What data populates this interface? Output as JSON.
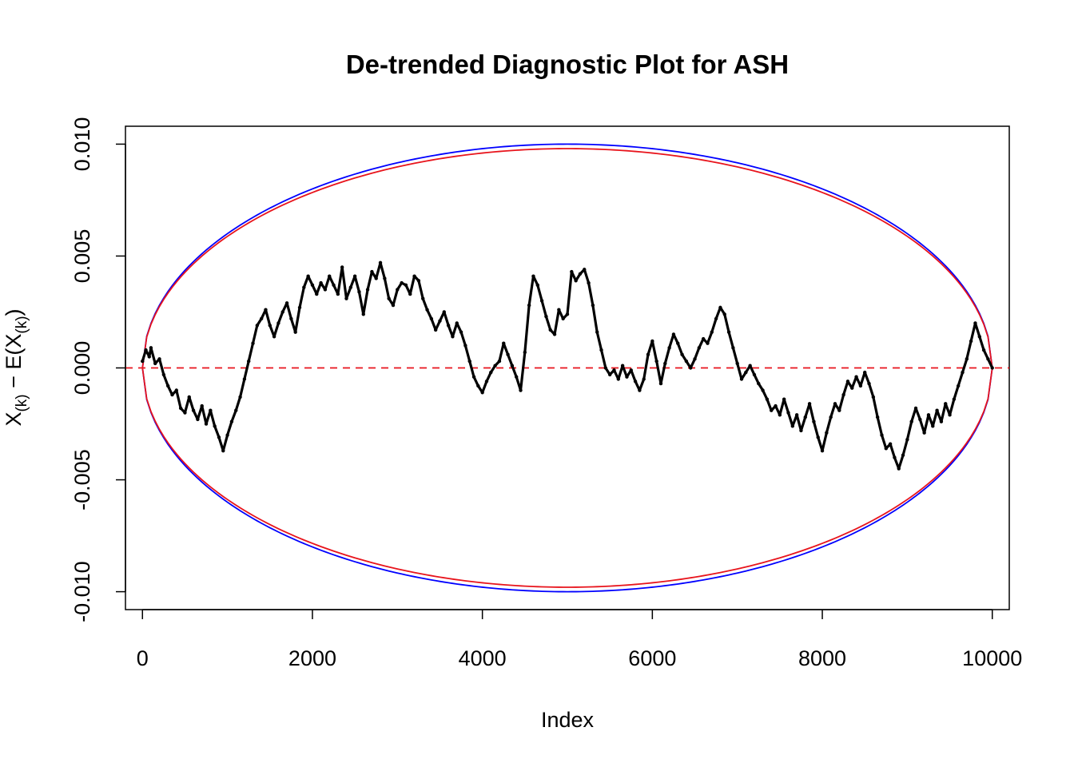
{
  "chart_data": {
    "type": "scatter",
    "title": "De-trended Diagnostic Plot for ASH",
    "xlabel": "Index",
    "ylabel": {
      "main": "X",
      "sub1": "(k)",
      "minus": " − E(X",
      "sub2": "(k)",
      "close": ")"
    },
    "xlim": [
      -200,
      10200
    ],
    "ylim": [
      -0.0108,
      0.0108
    ],
    "x_ticks": [
      {
        "value": 0,
        "label": "0"
      },
      {
        "value": 2000,
        "label": "2000"
      },
      {
        "value": 4000,
        "label": "4000"
      },
      {
        "value": 6000,
        "label": "6000"
      },
      {
        "value": 8000,
        "label": "8000"
      },
      {
        "value": 10000,
        "label": "10000"
      }
    ],
    "y_ticks": [
      {
        "value": -0.01,
        "label": "-0.010"
      },
      {
        "value": -0.005,
        "label": "-0.005"
      },
      {
        "value": 0,
        "label": "0.000"
      },
      {
        "value": 0.005,
        "label": "0.005"
      },
      {
        "value": 0.01,
        "label": "0.010"
      }
    ],
    "reference_line": {
      "y": 0,
      "style": "dashed",
      "color": "#e8141c"
    },
    "bands": [
      {
        "color": "#0000ff",
        "half_width_at_center": 0.01,
        "n": 10000
      },
      {
        "color": "#e8141c",
        "half_width_at_center": 0.0098,
        "n": 10000
      }
    ],
    "series_color": "#000000",
    "points": [
      [
        0,
        0.0003
      ],
      [
        40,
        0.0008
      ],
      [
        80,
        0.0005
      ],
      [
        100,
        0.0009
      ],
      [
        150,
        0.0002
      ],
      [
        200,
        0.0004
      ],
      [
        250,
        -0.0003
      ],
      [
        300,
        -0.0008
      ],
      [
        350,
        -0.0012
      ],
      [
        400,
        -0.001
      ],
      [
        450,
        -0.0018
      ],
      [
        500,
        -0.002
      ],
      [
        550,
        -0.0013
      ],
      [
        600,
        -0.0019
      ],
      [
        650,
        -0.0023
      ],
      [
        700,
        -0.0017
      ],
      [
        750,
        -0.0025
      ],
      [
        800,
        -0.0019
      ],
      [
        850,
        -0.0026
      ],
      [
        900,
        -0.0031
      ],
      [
        950,
        -0.0037
      ],
      [
        1000,
        -0.003
      ],
      [
        1050,
        -0.0024
      ],
      [
        1100,
        -0.0019
      ],
      [
        1150,
        -0.0013
      ],
      [
        1200,
        -0.0005
      ],
      [
        1250,
        0.0003
      ],
      [
        1300,
        0.0011
      ],
      [
        1350,
        0.0019
      ],
      [
        1400,
        0.0022
      ],
      [
        1450,
        0.0026
      ],
      [
        1500,
        0.0019
      ],
      [
        1550,
        0.0014
      ],
      [
        1600,
        0.002
      ],
      [
        1650,
        0.0025
      ],
      [
        1700,
        0.0029
      ],
      [
        1750,
        0.0022
      ],
      [
        1800,
        0.0016
      ],
      [
        1850,
        0.0027
      ],
      [
        1900,
        0.0036
      ],
      [
        1950,
        0.0041
      ],
      [
        2000,
        0.0037
      ],
      [
        2050,
        0.0033
      ],
      [
        2100,
        0.0038
      ],
      [
        2150,
        0.0035
      ],
      [
        2200,
        0.0041
      ],
      [
        2250,
        0.0037
      ],
      [
        2300,
        0.0033
      ],
      [
        2350,
        0.0045
      ],
      [
        2400,
        0.0031
      ],
      [
        2450,
        0.0036
      ],
      [
        2500,
        0.0041
      ],
      [
        2550,
        0.0034
      ],
      [
        2600,
        0.0024
      ],
      [
        2650,
        0.0035
      ],
      [
        2700,
        0.0043
      ],
      [
        2750,
        0.004
      ],
      [
        2800,
        0.0047
      ],
      [
        2850,
        0.004
      ],
      [
        2900,
        0.0031
      ],
      [
        2950,
        0.0028
      ],
      [
        3000,
        0.0035
      ],
      [
        3050,
        0.0038
      ],
      [
        3100,
        0.0037
      ],
      [
        3150,
        0.0033
      ],
      [
        3200,
        0.0041
      ],
      [
        3250,
        0.0039
      ],
      [
        3300,
        0.0031
      ],
      [
        3350,
        0.0026
      ],
      [
        3400,
        0.0022
      ],
      [
        3450,
        0.0017
      ],
      [
        3500,
        0.0021
      ],
      [
        3550,
        0.0025
      ],
      [
        3600,
        0.0019
      ],
      [
        3650,
        0.0014
      ],
      [
        3700,
        0.002
      ],
      [
        3750,
        0.0016
      ],
      [
        3800,
        0.001
      ],
      [
        3850,
        0.0003
      ],
      [
        3900,
        -0.0004
      ],
      [
        3950,
        -0.0008
      ],
      [
        4000,
        -0.0011
      ],
      [
        4050,
        -0.0006
      ],
      [
        4100,
        -0.0002
      ],
      [
        4150,
        0.0001
      ],
      [
        4200,
        0.0003
      ],
      [
        4250,
        0.0011
      ],
      [
        4300,
        0.0006
      ],
      [
        4350,
        0.0001
      ],
      [
        4400,
        -0.0004
      ],
      [
        4450,
        -0.001
      ],
      [
        4500,
        0.0007
      ],
      [
        4550,
        0.0028
      ],
      [
        4600,
        0.0041
      ],
      [
        4650,
        0.0037
      ],
      [
        4700,
        0.003
      ],
      [
        4750,
        0.0023
      ],
      [
        4800,
        0.0017
      ],
      [
        4850,
        0.0015
      ],
      [
        4900,
        0.0026
      ],
      [
        4950,
        0.0022
      ],
      [
        5000,
        0.0024
      ],
      [
        5050,
        0.0043
      ],
      [
        5100,
        0.0039
      ],
      [
        5150,
        0.0042
      ],
      [
        5200,
        0.0044
      ],
      [
        5250,
        0.0038
      ],
      [
        5300,
        0.0028
      ],
      [
        5350,
        0.0016
      ],
      [
        5400,
        0.0008
      ],
      [
        5450,
        0.0
      ],
      [
        5500,
        -0.0003
      ],
      [
        5550,
        -0.0001
      ],
      [
        5600,
        -0.0005
      ],
      [
        5650,
        0.0001
      ],
      [
        5700,
        -0.0004
      ],
      [
        5750,
        -0.0001
      ],
      [
        5800,
        -0.0006
      ],
      [
        5850,
        -0.001
      ],
      [
        5900,
        -0.0005
      ],
      [
        5950,
        0.0006
      ],
      [
        6000,
        0.0012
      ],
      [
        6050,
        0.0003
      ],
      [
        6100,
        -0.0007
      ],
      [
        6150,
        0.0002
      ],
      [
        6200,
        0.0009
      ],
      [
        6250,
        0.0015
      ],
      [
        6300,
        0.0011
      ],
      [
        6350,
        0.0006
      ],
      [
        6400,
        0.0003
      ],
      [
        6450,
        0.0
      ],
      [
        6500,
        0.0004
      ],
      [
        6550,
        0.0009
      ],
      [
        6600,
        0.0013
      ],
      [
        6650,
        0.0011
      ],
      [
        6700,
        0.0016
      ],
      [
        6750,
        0.0022
      ],
      [
        6800,
        0.0027
      ],
      [
        6850,
        0.0024
      ],
      [
        6900,
        0.0016
      ],
      [
        6950,
        0.0009
      ],
      [
        7000,
        0.0002
      ],
      [
        7050,
        -0.0005
      ],
      [
        7100,
        -0.0002
      ],
      [
        7150,
        0.0001
      ],
      [
        7200,
        -0.0003
      ],
      [
        7250,
        -0.0007
      ],
      [
        7300,
        -0.001
      ],
      [
        7350,
        -0.0014
      ],
      [
        7400,
        -0.0019
      ],
      [
        7450,
        -0.0017
      ],
      [
        7500,
        -0.0021
      ],
      [
        7550,
        -0.0014
      ],
      [
        7600,
        -0.002
      ],
      [
        7650,
        -0.0026
      ],
      [
        7700,
        -0.0021
      ],
      [
        7750,
        -0.0028
      ],
      [
        7800,
        -0.0022
      ],
      [
        7850,
        -0.0016
      ],
      [
        7900,
        -0.0024
      ],
      [
        7950,
        -0.0031
      ],
      [
        8000,
        -0.0037
      ],
      [
        8050,
        -0.0029
      ],
      [
        8100,
        -0.0022
      ],
      [
        8150,
        -0.0016
      ],
      [
        8200,
        -0.0019
      ],
      [
        8250,
        -0.0012
      ],
      [
        8300,
        -0.0006
      ],
      [
        8350,
        -0.0009
      ],
      [
        8400,
        -0.0004
      ],
      [
        8450,
        -0.0008
      ],
      [
        8500,
        -0.0002
      ],
      [
        8550,
        -0.0007
      ],
      [
        8600,
        -0.0013
      ],
      [
        8650,
        -0.0022
      ],
      [
        8700,
        -0.003
      ],
      [
        8750,
        -0.0036
      ],
      [
        8800,
        -0.0034
      ],
      [
        8850,
        -0.004
      ],
      [
        8900,
        -0.0045
      ],
      [
        8950,
        -0.0039
      ],
      [
        9000,
        -0.0032
      ],
      [
        9050,
        -0.0024
      ],
      [
        9100,
        -0.0018
      ],
      [
        9150,
        -0.0023
      ],
      [
        9200,
        -0.0029
      ],
      [
        9250,
        -0.0021
      ],
      [
        9300,
        -0.0026
      ],
      [
        9350,
        -0.0019
      ],
      [
        9400,
        -0.0024
      ],
      [
        9450,
        -0.0016
      ],
      [
        9500,
        -0.0021
      ],
      [
        9550,
        -0.0014
      ],
      [
        9600,
        -0.0008
      ],
      [
        9650,
        -0.0002
      ],
      [
        9700,
        0.0004
      ],
      [
        9750,
        0.0012
      ],
      [
        9800,
        0.002
      ],
      [
        9850,
        0.0014
      ],
      [
        9900,
        0.0008
      ],
      [
        9950,
        0.0004
      ],
      [
        10000,
        0.0
      ]
    ]
  }
}
